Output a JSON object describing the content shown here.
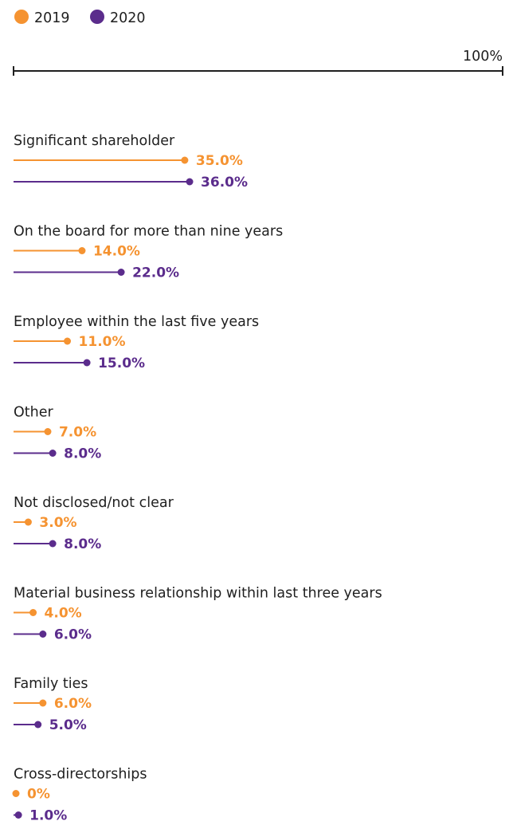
{
  "colors": {
    "2019": "#f59331",
    "2020": "#5b2c8c",
    "axis": "#1f1f1f"
  },
  "chart_data": {
    "type": "bar",
    "subtype": "lollipop-horizontal",
    "scale_label": "100%",
    "xlim": [
      0,
      100
    ],
    "legend": {
      "placement": "top-left"
    },
    "series": [
      {
        "name": "2019",
        "color": "#f59331"
      },
      {
        "name": "2020",
        "color": "#5b2c8c"
      }
    ],
    "categories": [
      {
        "label": "Significant shareholder",
        "values": [
          35.0,
          36.0
        ],
        "texts": [
          "35.0%",
          "36.0%"
        ]
      },
      {
        "label": "On the board for more than nine years",
        "values": [
          14.0,
          22.0
        ],
        "texts": [
          "14.0%",
          "22.0%"
        ]
      },
      {
        "label": "Employee within the last five years",
        "values": [
          11.0,
          15.0
        ],
        "texts": [
          "11.0%",
          "15.0%"
        ]
      },
      {
        "label": "Other",
        "values": [
          7.0,
          8.0
        ],
        "texts": [
          "7.0%",
          "8.0%"
        ]
      },
      {
        "label": "Not disclosed/not clear",
        "values": [
          3.0,
          8.0
        ],
        "texts": [
          "3.0%",
          "8.0%"
        ]
      },
      {
        "label": "Material business relationship within last three years",
        "values": [
          4.0,
          6.0
        ],
        "texts": [
          "4.0%",
          "6.0%"
        ]
      },
      {
        "label": "Family ties",
        "values": [
          6.0,
          5.0
        ],
        "texts": [
          "6.0%",
          "5.0%"
        ]
      },
      {
        "label": "Cross-directorships",
        "values": [
          0,
          1.0
        ],
        "texts": [
          "0%",
          "1.0%"
        ]
      }
    ]
  }
}
